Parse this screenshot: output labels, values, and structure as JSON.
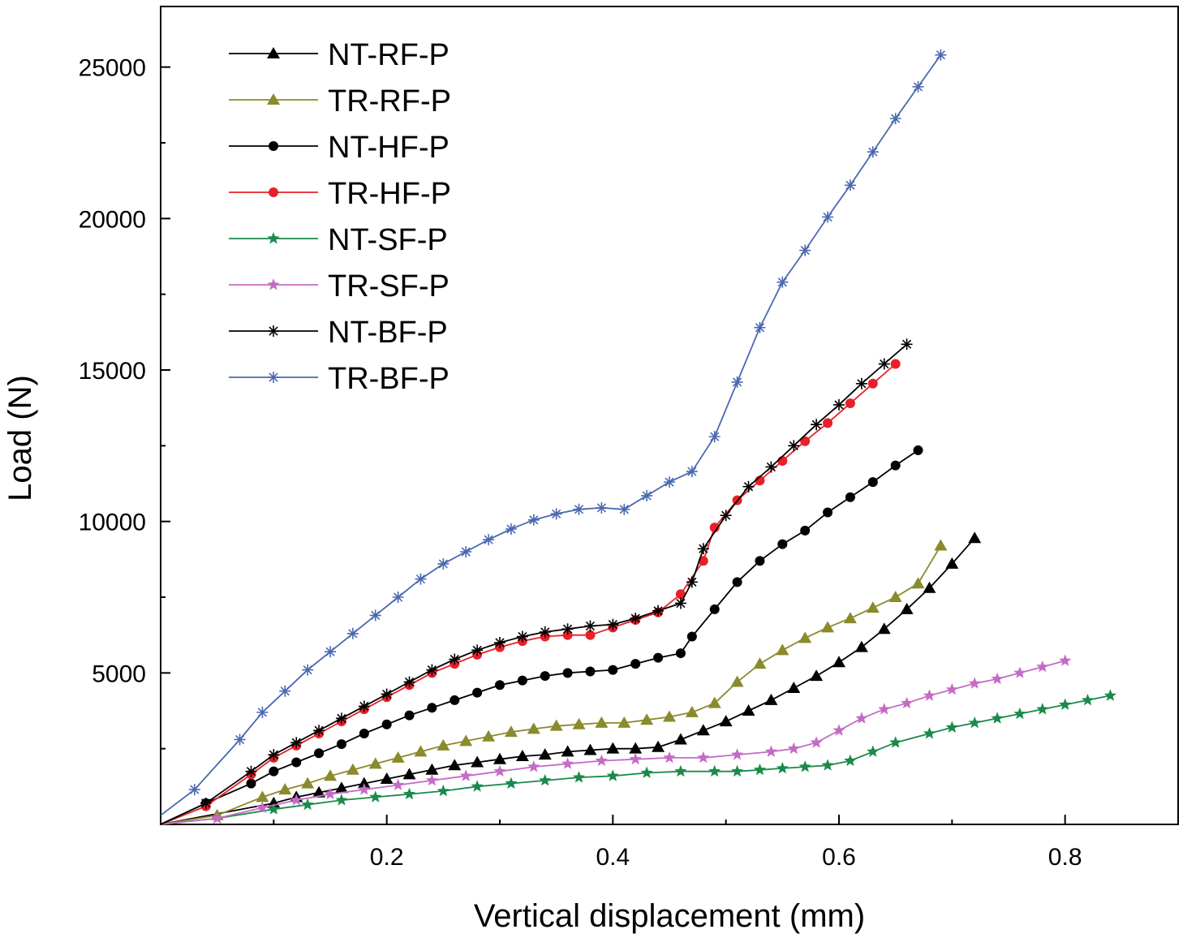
{
  "chart_data": {
    "type": "line",
    "title": "",
    "xlabel": "Vertical displacement (mm)",
    "ylabel": "Load (N)",
    "xlim": [
      0,
      0.9
    ],
    "ylim": [
      0,
      27000
    ],
    "xticks": [
      {
        "value": 0.2,
        "label": "0.2"
      },
      {
        "value": 0.4,
        "label": "0.4"
      },
      {
        "value": 0.6,
        "label": "0.6"
      },
      {
        "value": 0.8,
        "label": "0.8"
      }
    ],
    "yticks": [
      {
        "value": 5000,
        "label": "5000"
      },
      {
        "value": 10000,
        "label": "10000"
      },
      {
        "value": 15000,
        "label": "15000"
      },
      {
        "value": 20000,
        "label": "20000"
      },
      {
        "value": 25000,
        "label": "25000"
      }
    ],
    "legend_position": "top-left",
    "series": [
      {
        "name": "NT-RF-P",
        "color": "#000000",
        "marker": "triangle",
        "points": [
          [
            0.0,
            0
          ],
          [
            0.1,
            700
          ],
          [
            0.12,
            900
          ],
          [
            0.14,
            1050
          ],
          [
            0.16,
            1200
          ],
          [
            0.18,
            1350
          ],
          [
            0.2,
            1500
          ],
          [
            0.22,
            1650
          ],
          [
            0.24,
            1800
          ],
          [
            0.26,
            1950
          ],
          [
            0.28,
            2050
          ],
          [
            0.3,
            2150
          ],
          [
            0.32,
            2250
          ],
          [
            0.34,
            2300
          ],
          [
            0.36,
            2400
          ],
          [
            0.38,
            2450
          ],
          [
            0.4,
            2500
          ],
          [
            0.42,
            2500
          ],
          [
            0.44,
            2550
          ],
          [
            0.46,
            2800
          ],
          [
            0.48,
            3100
          ],
          [
            0.5,
            3400
          ],
          [
            0.52,
            3750
          ],
          [
            0.54,
            4100
          ],
          [
            0.56,
            4500
          ],
          [
            0.58,
            4900
          ],
          [
            0.6,
            5350
          ],
          [
            0.62,
            5850
          ],
          [
            0.64,
            6450
          ],
          [
            0.66,
            7100
          ],
          [
            0.68,
            7800
          ],
          [
            0.7,
            8600
          ],
          [
            0.72,
            9450
          ]
        ]
      },
      {
        "name": "TR-RF-P",
        "color": "#8b8a2c",
        "marker": "triangle",
        "points": [
          [
            0.0,
            0
          ],
          [
            0.05,
            300
          ],
          [
            0.09,
            900
          ],
          [
            0.11,
            1150
          ],
          [
            0.13,
            1350
          ],
          [
            0.15,
            1600
          ],
          [
            0.17,
            1800
          ],
          [
            0.19,
            2000
          ],
          [
            0.21,
            2200
          ],
          [
            0.23,
            2400
          ],
          [
            0.25,
            2600
          ],
          [
            0.27,
            2750
          ],
          [
            0.29,
            2900
          ],
          [
            0.31,
            3050
          ],
          [
            0.33,
            3150
          ],
          [
            0.35,
            3250
          ],
          [
            0.37,
            3300
          ],
          [
            0.39,
            3350
          ],
          [
            0.41,
            3350
          ],
          [
            0.43,
            3450
          ],
          [
            0.45,
            3550
          ],
          [
            0.47,
            3700
          ],
          [
            0.49,
            4000
          ],
          [
            0.51,
            4700
          ],
          [
            0.53,
            5300
          ],
          [
            0.55,
            5750
          ],
          [
            0.57,
            6150
          ],
          [
            0.59,
            6500
          ],
          [
            0.61,
            6800
          ],
          [
            0.63,
            7150
          ],
          [
            0.65,
            7500
          ],
          [
            0.67,
            7950
          ],
          [
            0.69,
            9200
          ]
        ]
      },
      {
        "name": "NT-HF-P",
        "color": "#000000",
        "marker": "circle",
        "points": [
          [
            0.0,
            0
          ],
          [
            0.04,
            700
          ],
          [
            0.08,
            1350
          ],
          [
            0.1,
            1750
          ],
          [
            0.12,
            2050
          ],
          [
            0.14,
            2350
          ],
          [
            0.16,
            2650
          ],
          [
            0.18,
            3000
          ],
          [
            0.2,
            3300
          ],
          [
            0.22,
            3600
          ],
          [
            0.24,
            3850
          ],
          [
            0.26,
            4100
          ],
          [
            0.28,
            4350
          ],
          [
            0.3,
            4600
          ],
          [
            0.32,
            4750
          ],
          [
            0.34,
            4900
          ],
          [
            0.36,
            5000
          ],
          [
            0.38,
            5050
          ],
          [
            0.4,
            5100
          ],
          [
            0.42,
            5300
          ],
          [
            0.44,
            5500
          ],
          [
            0.46,
            5650
          ],
          [
            0.47,
            6200
          ],
          [
            0.49,
            7100
          ],
          [
            0.51,
            8000
          ],
          [
            0.53,
            8700
          ],
          [
            0.55,
            9250
          ],
          [
            0.57,
            9700
          ],
          [
            0.59,
            10300
          ],
          [
            0.61,
            10800
          ],
          [
            0.63,
            11300
          ],
          [
            0.65,
            11850
          ],
          [
            0.67,
            12350
          ]
        ]
      },
      {
        "name": "TR-HF-P",
        "color": "#e8202a",
        "marker": "circle",
        "points": [
          [
            0.0,
            0
          ],
          [
            0.04,
            600
          ],
          [
            0.08,
            1650
          ],
          [
            0.1,
            2200
          ],
          [
            0.12,
            2600
          ],
          [
            0.14,
            3000
          ],
          [
            0.16,
            3400
          ],
          [
            0.18,
            3800
          ],
          [
            0.2,
            4200
          ],
          [
            0.22,
            4600
          ],
          [
            0.24,
            5000
          ],
          [
            0.26,
            5300
          ],
          [
            0.28,
            5600
          ],
          [
            0.3,
            5850
          ],
          [
            0.32,
            6050
          ],
          [
            0.34,
            6200
          ],
          [
            0.36,
            6250
          ],
          [
            0.38,
            6250
          ],
          [
            0.4,
            6500
          ],
          [
            0.42,
            6750
          ],
          [
            0.44,
            7000
          ],
          [
            0.46,
            7600
          ],
          [
            0.48,
            8700
          ],
          [
            0.49,
            9800
          ],
          [
            0.51,
            10700
          ],
          [
            0.53,
            11350
          ],
          [
            0.55,
            12000
          ],
          [
            0.57,
            12650
          ],
          [
            0.59,
            13250
          ],
          [
            0.61,
            13900
          ],
          [
            0.63,
            14550
          ],
          [
            0.65,
            15200
          ]
        ]
      },
      {
        "name": "NT-SF-P",
        "color": "#1a8a4a",
        "marker": "star",
        "points": [
          [
            0.0,
            0
          ],
          [
            0.05,
            200
          ],
          [
            0.1,
            500
          ],
          [
            0.13,
            650
          ],
          [
            0.16,
            800
          ],
          [
            0.19,
            900
          ],
          [
            0.22,
            1000
          ],
          [
            0.25,
            1100
          ],
          [
            0.28,
            1250
          ],
          [
            0.31,
            1350
          ],
          [
            0.34,
            1450
          ],
          [
            0.37,
            1550
          ],
          [
            0.4,
            1600
          ],
          [
            0.43,
            1700
          ],
          [
            0.46,
            1750
          ],
          [
            0.49,
            1750
          ],
          [
            0.51,
            1750
          ],
          [
            0.53,
            1800
          ],
          [
            0.55,
            1850
          ],
          [
            0.57,
            1900
          ],
          [
            0.59,
            1950
          ],
          [
            0.61,
            2100
          ],
          [
            0.63,
            2400
          ],
          [
            0.65,
            2700
          ],
          [
            0.68,
            3000
          ],
          [
            0.7,
            3200
          ],
          [
            0.72,
            3350
          ],
          [
            0.74,
            3500
          ],
          [
            0.76,
            3650
          ],
          [
            0.78,
            3800
          ],
          [
            0.8,
            3950
          ],
          [
            0.82,
            4100
          ],
          [
            0.84,
            4250
          ]
        ]
      },
      {
        "name": "TR-SF-P",
        "color": "#c46bc6",
        "marker": "star",
        "points": [
          [
            0.0,
            0
          ],
          [
            0.05,
            200
          ],
          [
            0.09,
            550
          ],
          [
            0.12,
            800
          ],
          [
            0.15,
            1000
          ],
          [
            0.18,
            1150
          ],
          [
            0.21,
            1300
          ],
          [
            0.24,
            1450
          ],
          [
            0.27,
            1600
          ],
          [
            0.3,
            1750
          ],
          [
            0.33,
            1900
          ],
          [
            0.36,
            2000
          ],
          [
            0.39,
            2100
          ],
          [
            0.42,
            2150
          ],
          [
            0.45,
            2200
          ],
          [
            0.48,
            2200
          ],
          [
            0.51,
            2300
          ],
          [
            0.54,
            2400
          ],
          [
            0.56,
            2500
          ],
          [
            0.58,
            2700
          ],
          [
            0.6,
            3100
          ],
          [
            0.62,
            3500
          ],
          [
            0.64,
            3800
          ],
          [
            0.66,
            4000
          ],
          [
            0.68,
            4250
          ],
          [
            0.7,
            4450
          ],
          [
            0.72,
            4650
          ],
          [
            0.74,
            4800
          ],
          [
            0.76,
            5000
          ],
          [
            0.78,
            5200
          ],
          [
            0.8,
            5400
          ]
        ]
      },
      {
        "name": "NT-BF-P",
        "color": "#000000",
        "marker": "asterisk",
        "points": [
          [
            0.0,
            0
          ],
          [
            0.04,
            700
          ],
          [
            0.08,
            1750
          ],
          [
            0.1,
            2300
          ],
          [
            0.12,
            2700
          ],
          [
            0.14,
            3100
          ],
          [
            0.16,
            3500
          ],
          [
            0.18,
            3900
          ],
          [
            0.2,
            4300
          ],
          [
            0.22,
            4700
          ],
          [
            0.24,
            5100
          ],
          [
            0.26,
            5450
          ],
          [
            0.28,
            5750
          ],
          [
            0.3,
            6000
          ],
          [
            0.32,
            6200
          ],
          [
            0.34,
            6350
          ],
          [
            0.36,
            6450
          ],
          [
            0.38,
            6550
          ],
          [
            0.4,
            6600
          ],
          [
            0.42,
            6800
          ],
          [
            0.44,
            7050
          ],
          [
            0.46,
            7300
          ],
          [
            0.47,
            8000
          ],
          [
            0.48,
            9100
          ],
          [
            0.5,
            10200
          ],
          [
            0.52,
            11150
          ],
          [
            0.54,
            11800
          ],
          [
            0.56,
            12500
          ],
          [
            0.58,
            13200
          ],
          [
            0.6,
            13850
          ],
          [
            0.62,
            14550
          ],
          [
            0.64,
            15200
          ],
          [
            0.66,
            15850
          ]
        ]
      },
      {
        "name": "TR-BF-P",
        "color": "#4a68b0",
        "marker": "asterisk",
        "points": [
          [
            0.0,
            300
          ],
          [
            0.03,
            1150
          ],
          [
            0.07,
            2800
          ],
          [
            0.09,
            3700
          ],
          [
            0.11,
            4400
          ],
          [
            0.13,
            5100
          ],
          [
            0.15,
            5700
          ],
          [
            0.17,
            6300
          ],
          [
            0.19,
            6900
          ],
          [
            0.21,
            7500
          ],
          [
            0.23,
            8100
          ],
          [
            0.25,
            8600
          ],
          [
            0.27,
            9000
          ],
          [
            0.29,
            9400
          ],
          [
            0.31,
            9750
          ],
          [
            0.33,
            10050
          ],
          [
            0.35,
            10250
          ],
          [
            0.37,
            10400
          ],
          [
            0.39,
            10450
          ],
          [
            0.41,
            10400
          ],
          [
            0.43,
            10850
          ],
          [
            0.45,
            11300
          ],
          [
            0.47,
            11650
          ],
          [
            0.49,
            12800
          ],
          [
            0.51,
            14600
          ],
          [
            0.53,
            16400
          ],
          [
            0.55,
            17900
          ],
          [
            0.57,
            18950
          ],
          [
            0.59,
            20050
          ],
          [
            0.61,
            21100
          ],
          [
            0.63,
            22200
          ],
          [
            0.65,
            23300
          ],
          [
            0.67,
            24350
          ],
          [
            0.69,
            25400
          ]
        ]
      }
    ]
  }
}
